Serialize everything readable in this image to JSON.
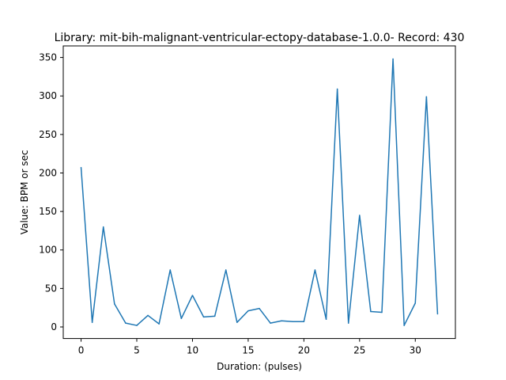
{
  "chart_data": {
    "type": "line",
    "title": "Library: mit-bih-malignant-ventricular-ectopy-database-1.0.0- Record: 430",
    "xlabel": "Duration: (pulses)",
    "ylabel": "Value: BPM or sec",
    "xlim": [
      -1.6,
      33.6
    ],
    "ylim": [
      -15,
      365
    ],
    "xticks": [
      0,
      5,
      10,
      15,
      20,
      25,
      30
    ],
    "yticks": [
      0,
      50,
      100,
      150,
      200,
      250,
      300,
      350
    ],
    "grid": false,
    "line_color": "#1f77b4",
    "series": [
      {
        "x": [
          0,
          1,
          2,
          3,
          4,
          5,
          6,
          7,
          8,
          9,
          10,
          11,
          12,
          13,
          14,
          15,
          16,
          17,
          18,
          19,
          20,
          21,
          22,
          23,
          24,
          25,
          26,
          27,
          28,
          29,
          30,
          31,
          32
        ],
        "values": [
          207,
          6,
          130,
          30,
          5,
          2,
          15,
          4,
          74,
          11,
          41,
          13,
          14,
          74,
          6,
          21,
          24,
          5,
          8,
          7,
          7,
          74,
          10,
          309,
          5,
          145,
          20,
          19,
          348,
          2,
          31,
          299,
          17
        ]
      }
    ]
  }
}
